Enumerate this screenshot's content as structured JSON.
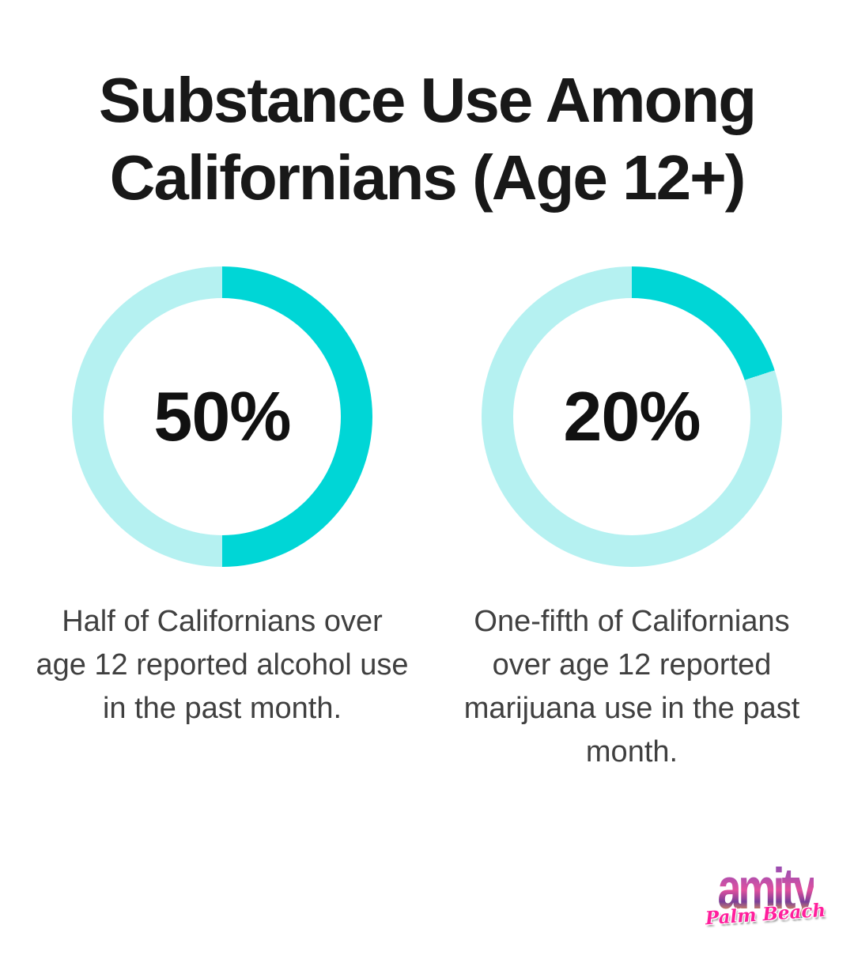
{
  "title": {
    "line1": "Substance Use Among",
    "line2": "Californians (Age 12+)",
    "full": "Substance Use Among Californians (Age 12+)"
  },
  "colors": {
    "donut_fill": "#00D6D6",
    "donut_track": "#B5F1F1",
    "title_text": "#181818",
    "caption_text": "#404040",
    "logo_script_pink": "#FF1F9C"
  },
  "chart_data": [
    {
      "type": "pie",
      "subtype": "donut",
      "value_pct": 50,
      "center_label": "50%",
      "start_angle_deg": 0,
      "direction": "clockwise",
      "segments": [
        {
          "name": "reported alcohol use in past month",
          "value": 50,
          "color": "#00D6D6"
        },
        {
          "name": "remainder",
          "value": 50,
          "color": "#B5F1F1"
        }
      ],
      "caption": "Half of Californians over age 12 reported alcohol use in the past month."
    },
    {
      "type": "pie",
      "subtype": "donut",
      "value_pct": 20,
      "center_label": "20%",
      "start_angle_deg": 0,
      "direction": "clockwise",
      "segments": [
        {
          "name": "reported marijuana use in past month",
          "value": 20,
          "color": "#00D6D6"
        },
        {
          "name": "remainder",
          "value": 80,
          "color": "#B5F1F1"
        }
      ],
      "caption": "One-fifth of Californians over age 12 reported marijuana use in the past month."
    }
  ],
  "logo": {
    "brand": "amity",
    "location": "Palm Beach"
  }
}
